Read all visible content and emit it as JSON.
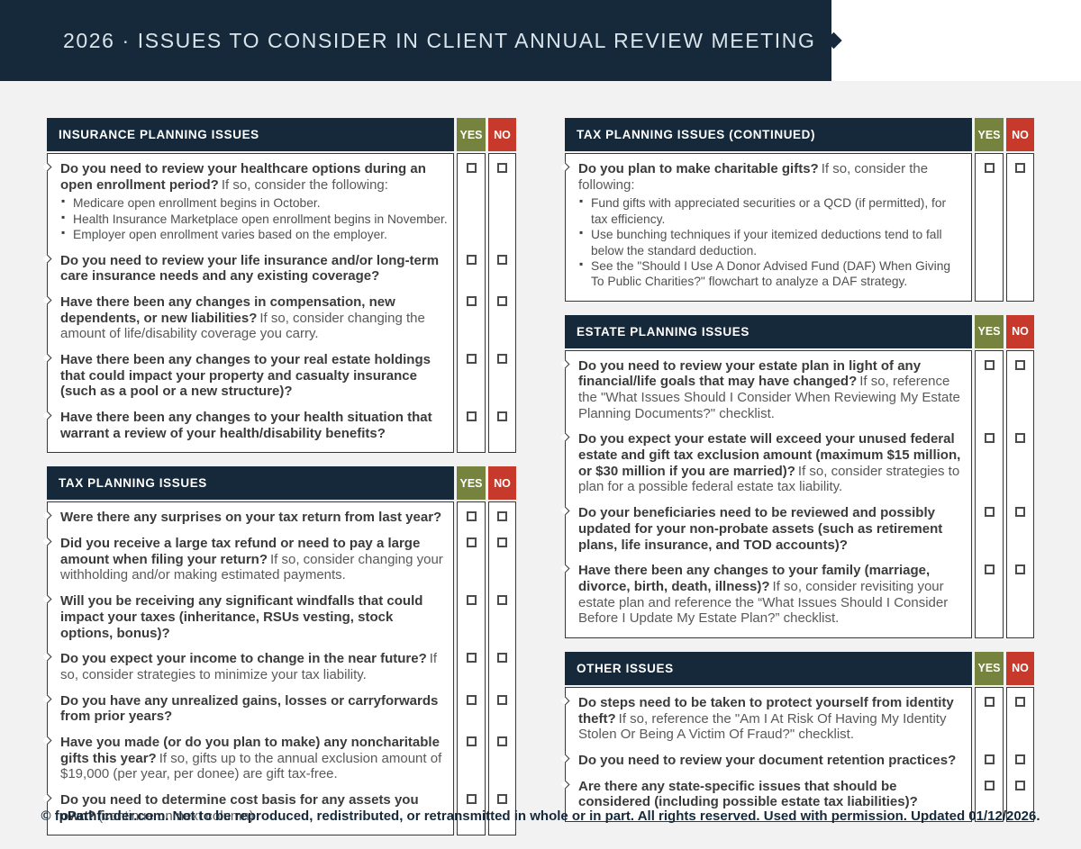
{
  "banner": {
    "title": "2026 · ISSUES TO CONSIDER IN CLIENT ANNUAL REVIEW MEETING"
  },
  "labels": {
    "yes": "YES",
    "no": "NO"
  },
  "footer": {
    "text": "© fpPathfinder.com. Not to be reproduced, redistributed, or retransmitted in whole or in part. All rights reserved. Used with permission. Updated 01/12/2026."
  },
  "colors": {
    "navy": "#15293a",
    "olive": "#76833f",
    "red": "#c6392b",
    "page_bg": "#f2f2f2",
    "border": "#383838"
  },
  "columns": {
    "left": [
      "insurance",
      "tax"
    ],
    "right": [
      "tax_continued",
      "estate",
      "other"
    ]
  },
  "tables": {
    "insurance": {
      "title": "INSURANCE PLANNING ISSUES",
      "rows": [
        {
          "bold": "Do you need to review your healthcare options during an open enrollment period?",
          "regular": "If so, consider the following:",
          "bullets": [
            "Medicare open enrollment begins in October.",
            "Health Insurance Marketplace open enrollment begins in November.",
            "Employer open enrollment varies based on the employer."
          ]
        },
        {
          "bold": "Do you need to review your life insurance and/or long-term care insurance needs and any existing coverage?"
        },
        {
          "bold": "Have there been any changes in compensation, new dependents, or new liabilities?",
          "regular": "If so, consider changing the amount of life/disability coverage you carry."
        },
        {
          "bold": "Have there been any changes to your real estate holdings that could impact your property and casualty insurance (such as a pool or a new structure)?"
        },
        {
          "bold": "Have there been any changes to your health situation that warrant a review of your health/disability benefits?"
        }
      ]
    },
    "tax": {
      "title": "TAX PLANNING ISSUES",
      "rows": [
        {
          "bold": "Were there any surprises on your tax return from last year?"
        },
        {
          "bold": "Did you receive a large tax refund or need to pay a large amount when filing your return?",
          "regular": "If so, consider changing your withholding and/or making estimated payments."
        },
        {
          "bold": "Will you be receiving any significant windfalls that could impact your taxes (inheritance, RSUs vesting, stock options, bonus)?"
        },
        {
          "bold": "Do you expect your income to change in the near future?",
          "regular": "If so, consider strategies to minimize your tax liability."
        },
        {
          "bold": "Do you have any unrealized gains, losses or carryforwards from prior years?"
        },
        {
          "bold": "Have you made (or do you plan to make) any noncharitable gifts this year?",
          "regular": "If so, gifts up to the annual exclusion amount of $19,000 (per year, per donee) are gift tax-free."
        },
        {
          "bold": "Do you need to determine cost basis for any assets you own?",
          "regular": "(continue on next column)"
        }
      ]
    },
    "tax_continued": {
      "title": "TAX PLANNING ISSUES (CONTINUED)",
      "rows": [
        {
          "bold": "Do you plan to make charitable gifts?",
          "regular": "If so, consider the following:",
          "bullets": [
            "Fund gifts with appreciated securities or a QCD (if permitted), for tax efficiency.",
            "Use bunching techniques if your itemized deductions tend to fall below the standard deduction.",
            "See the \"Should I Use A Donor Advised Fund (DAF) When Giving To Public Charities?\" flowchart to analyze a DAF strategy."
          ]
        }
      ]
    },
    "estate": {
      "title": "ESTATE PLANNING ISSUES",
      "rows": [
        {
          "bold": "Do you need to review your estate plan in light of any financial/life goals that may have changed?",
          "regular": "If so, reference the \"What Issues Should I Consider When Reviewing My Estate Planning Documents?\" checklist."
        },
        {
          "bold": "Do you expect your estate will exceed your unused federal estate and gift tax exclusion amount (maximum $15 million, or $30 million if you are married)?",
          "regular": "If so, consider strategies to plan for a possible federal estate tax liability."
        },
        {
          "bold": "Do your beneficiaries need to be reviewed and possibly updated for your non-probate assets (such as retirement plans, life insurance, and TOD accounts)?"
        },
        {
          "bold": "Have there been any changes to your family (marriage, divorce, birth, death, illness)?",
          "regular": "If so, consider revisiting your estate plan and reference the “What Issues Should I Consider Before I Update My Estate Plan?” checklist."
        }
      ]
    },
    "other": {
      "title": "OTHER ISSUES",
      "rows": [
        {
          "bold": "Do steps need to be taken to protect yourself from identity theft?",
          "regular": "If so, reference the \"Am I At Risk Of Having My Identity Stolen Or Being A Victim Of Fraud?\" checklist."
        },
        {
          "bold": "Do you need to review your document retention practices?"
        },
        {
          "bold": "Are there any state-specific issues that should be considered (including possible estate tax liabilities)?"
        }
      ]
    }
  }
}
